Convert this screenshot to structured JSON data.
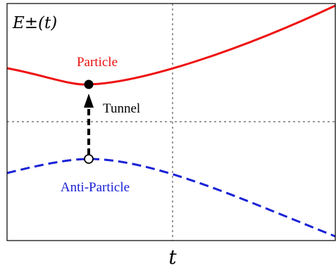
{
  "figure": {
    "y_label": "E±(t)",
    "x_label": "t",
    "particle_label": "Particle",
    "antiparticle_label": "Anti-Particle",
    "tunnel_label": "Tunnel"
  },
  "colors": {
    "particle": "#ee1111",
    "antiparticle": "#1a22d6",
    "axes": "#000000",
    "grid": "#333333",
    "arrow": "#000000"
  },
  "chart_data": {
    "type": "line",
    "title": "",
    "xlabel": "t",
    "ylabel": "E±(t)",
    "x_ticks": [
      "t"
    ],
    "grid": "dotted crosshair at center",
    "series": [
      {
        "name": "Particle",
        "style": "solid",
        "shape": "convex curve with minimum at the tunnel point, rising to the right"
      },
      {
        "name": "Anti-Particle",
        "style": "dashed",
        "shape": "concave curve with maximum at the tunnel point, falling to the right"
      }
    ],
    "annotations": [
      {
        "text": "Tunnel",
        "kind": "dashed arrow from anti-particle maximum up to particle minimum"
      }
    ]
  }
}
